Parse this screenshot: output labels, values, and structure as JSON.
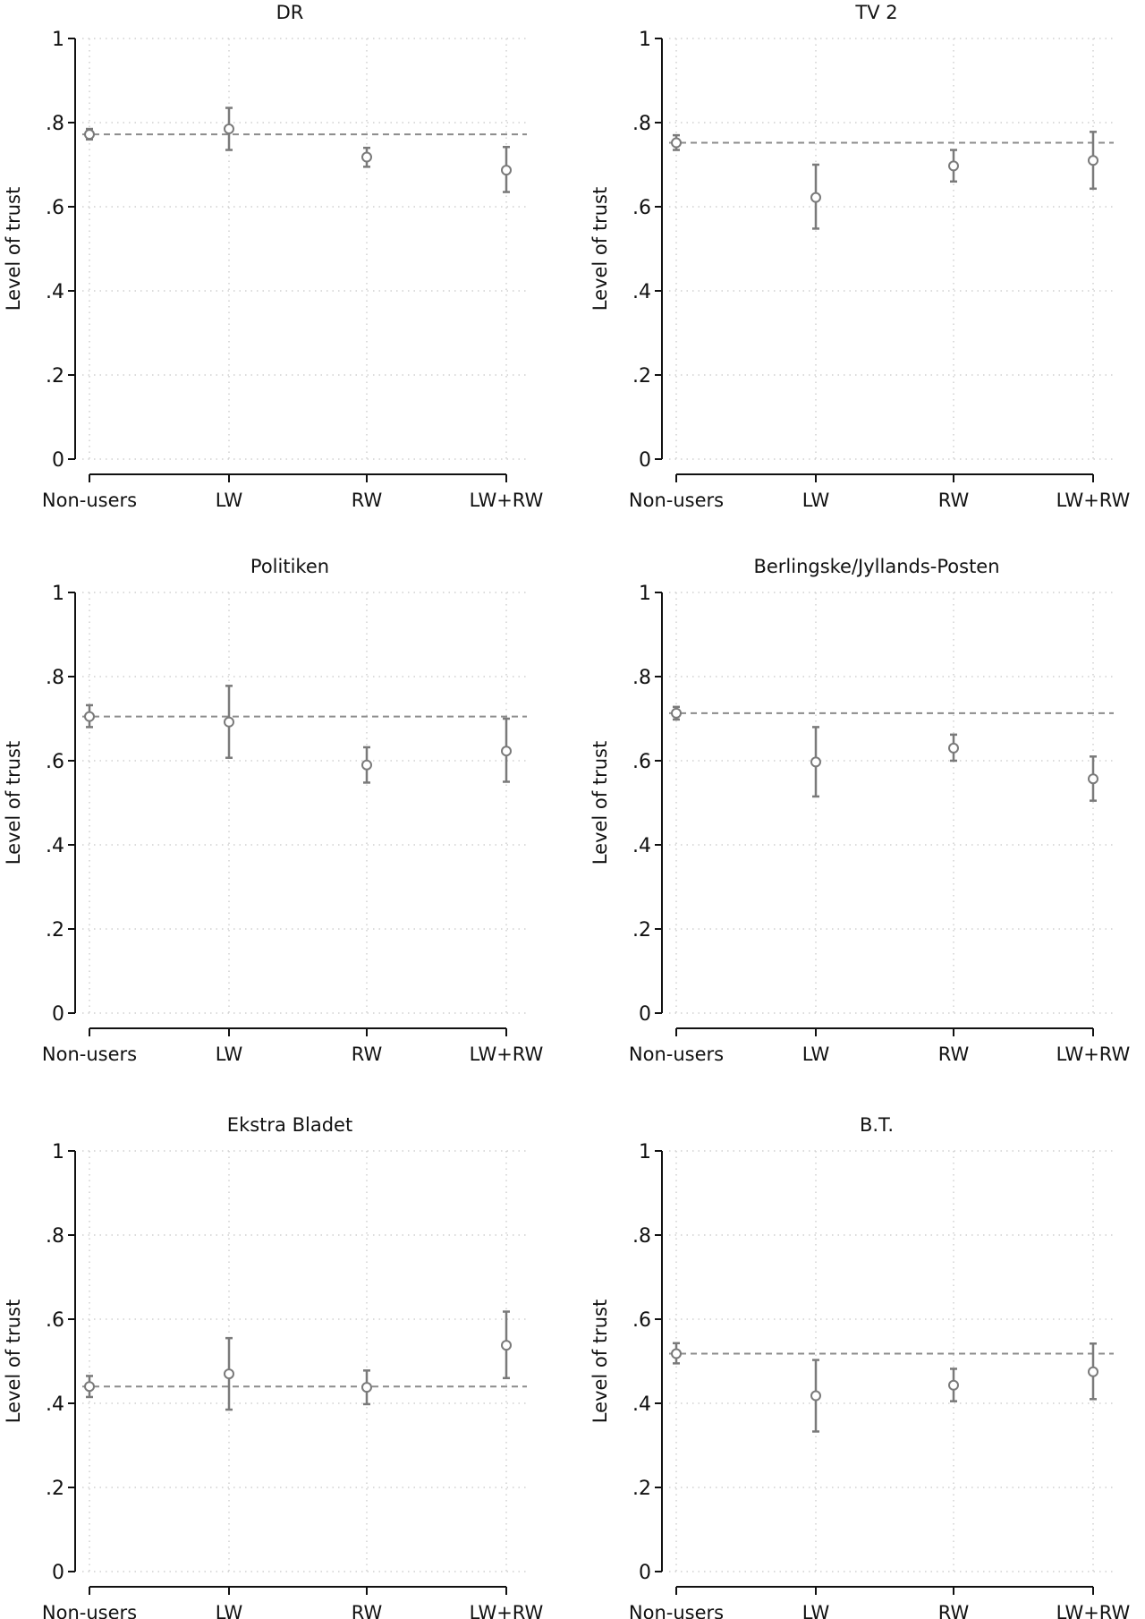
{
  "chart_data": [
    {
      "type": "scatter",
      "title": "DR",
      "ylabel": "Level of trust",
      "ylim": [
        0,
        1
      ],
      "yticks": [
        0,
        0.2,
        0.4,
        0.6,
        0.8,
        1
      ],
      "ytick_labels": [
        "0",
        ".2",
        ".4",
        ".6",
        ".8",
        "1"
      ],
      "grid": true,
      "categories": [
        "Non-users",
        "LW",
        "RW",
        "LW+RW"
      ],
      "values": [
        0.772,
        0.785,
        0.718,
        0.687
      ],
      "ci_low": [
        0.76,
        0.735,
        0.695,
        0.635
      ],
      "ci_high": [
        0.785,
        0.835,
        0.74,
        0.742
      ],
      "reference_line": 0.772
    },
    {
      "type": "scatter",
      "title": "TV 2",
      "ylabel": "Level of trust",
      "ylim": [
        0,
        1
      ],
      "yticks": [
        0,
        0.2,
        0.4,
        0.6,
        0.8,
        1
      ],
      "ytick_labels": [
        "0",
        ".2",
        ".4",
        ".6",
        ".8",
        "1"
      ],
      "grid": true,
      "categories": [
        "Non-users",
        "LW",
        "RW",
        "LW+RW"
      ],
      "values": [
        0.752,
        0.622,
        0.697,
        0.71
      ],
      "ci_low": [
        0.735,
        0.548,
        0.66,
        0.643
      ],
      "ci_high": [
        0.77,
        0.7,
        0.735,
        0.778
      ],
      "reference_line": 0.752
    },
    {
      "type": "scatter",
      "title": "Politiken",
      "ylabel": "Level of trust",
      "ylim": [
        0,
        1
      ],
      "yticks": [
        0,
        0.2,
        0.4,
        0.6,
        0.8,
        1
      ],
      "ytick_labels": [
        "0",
        ".2",
        ".4",
        ".6",
        ".8",
        "1"
      ],
      "grid": true,
      "categories": [
        "Non-users",
        "LW",
        "RW",
        "LW+RW"
      ],
      "values": [
        0.705,
        0.692,
        0.59,
        0.623
      ],
      "ci_low": [
        0.68,
        0.607,
        0.548,
        0.55
      ],
      "ci_high": [
        0.732,
        0.778,
        0.632,
        0.7
      ],
      "reference_line": 0.705
    },
    {
      "type": "scatter",
      "title": "Berlingske/Jyllands-Posten",
      "ylabel": "Level of trust",
      "ylim": [
        0,
        1
      ],
      "yticks": [
        0,
        0.2,
        0.4,
        0.6,
        0.8,
        1
      ],
      "ytick_labels": [
        "0",
        ".2",
        ".4",
        ".6",
        ".8",
        "1"
      ],
      "grid": true,
      "categories": [
        "Non-users",
        "LW",
        "RW",
        "LW+RW"
      ],
      "values": [
        0.713,
        0.597,
        0.63,
        0.557
      ],
      "ci_low": [
        0.698,
        0.515,
        0.6,
        0.505
      ],
      "ci_high": [
        0.728,
        0.68,
        0.662,
        0.61
      ],
      "reference_line": 0.713
    },
    {
      "type": "scatter",
      "title": "Ekstra Bladet",
      "ylabel": "Level of trust",
      "ylim": [
        0,
        1
      ],
      "yticks": [
        0,
        0.2,
        0.4,
        0.6,
        0.8,
        1
      ],
      "ytick_labels": [
        "0",
        ".2",
        ".4",
        ".6",
        ".8",
        "1"
      ],
      "grid": true,
      "categories": [
        "Non-users",
        "LW",
        "RW",
        "LW+RW"
      ],
      "values": [
        0.44,
        0.47,
        0.438,
        0.538
      ],
      "ci_low": [
        0.415,
        0.385,
        0.398,
        0.46
      ],
      "ci_high": [
        0.465,
        0.555,
        0.478,
        0.618
      ],
      "reference_line": 0.44
    },
    {
      "type": "scatter",
      "title": "B.T.",
      "ylabel": "Level of trust",
      "ylim": [
        0,
        1
      ],
      "yticks": [
        0,
        0.2,
        0.4,
        0.6,
        0.8,
        1
      ],
      "ytick_labels": [
        "0",
        ".2",
        ".4",
        ".6",
        ".8",
        "1"
      ],
      "grid": true,
      "categories": [
        "Non-users",
        "LW",
        "RW",
        "LW+RW"
      ],
      "values": [
        0.518,
        0.418,
        0.443,
        0.475
      ],
      "ci_low": [
        0.495,
        0.333,
        0.405,
        0.41
      ],
      "ci_high": [
        0.543,
        0.503,
        0.482,
        0.542
      ],
      "reference_line": 0.518
    }
  ],
  "colors": {
    "marker": "#7a7a7a",
    "reference_line": "#8c8c8c",
    "grid": "#d0d0d0",
    "axis": "#111111"
  }
}
